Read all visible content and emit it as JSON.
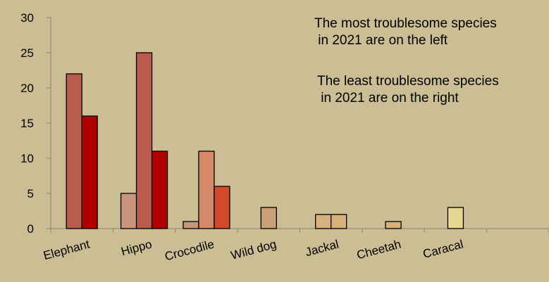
{
  "chart_data": {
    "type": "bar",
    "title": "",
    "xlabel": "",
    "ylabel": "",
    "ylim": [
      0,
      30
    ],
    "yticks": [
      0,
      5,
      10,
      15,
      20,
      25,
      30
    ],
    "categories": [
      "Elephant",
      "Hippo",
      "Crocodile",
      "Wild dog",
      "Jackal",
      "Cheetah",
      "Caracal",
      ""
    ],
    "bars": [
      {
        "category": "Elephant",
        "values": [
          22,
          16
        ],
        "colors": [
          "#b85c4e",
          "#b00000"
        ]
      },
      {
        "category": "Hippo",
        "values": [
          5,
          25,
          11
        ],
        "colors": [
          "#c9957c",
          "#b85c4e",
          "#b00000"
        ]
      },
      {
        "category": "Crocodile",
        "values": [
          1,
          11,
          6
        ],
        "colors": [
          "#c9957c",
          "#d48968",
          "#d24a2a"
        ]
      },
      {
        "category": "Wild dog",
        "values": [
          3
        ],
        "colors": [
          "#c9a07a"
        ]
      },
      {
        "category": "Jackal",
        "values": [
          2,
          2
        ],
        "colors": [
          "#d7b07c",
          "#d7b07c"
        ]
      },
      {
        "category": "Cheetah",
        "values": [
          1
        ],
        "colors": [
          "#d7b07c"
        ]
      },
      {
        "category": "Caracal",
        "values": [
          3
        ],
        "colors": [
          "#e6d890"
        ]
      },
      {
        "category": "",
        "values": [],
        "colors": []
      }
    ],
    "grid": false,
    "legend": "none"
  },
  "annotations": {
    "most_line1": "The most troublesome species",
    "most_line2": " in 2021 are on the left",
    "least_line1": "The least troublesome species",
    "least_line2": " in 2021 are on the right"
  }
}
